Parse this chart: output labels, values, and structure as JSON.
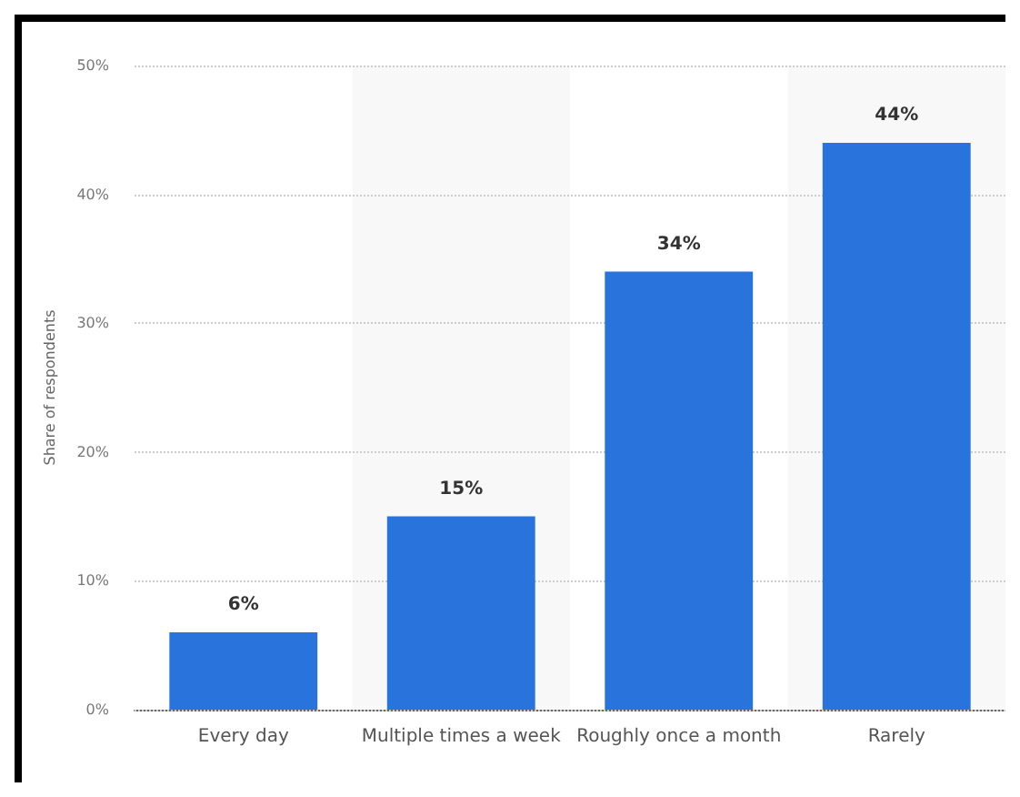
{
  "chart_data": {
    "type": "bar",
    "ylabel": "Share of respondents",
    "categories": [
      "Every day",
      "Multiple times a week",
      "Roughly once a month",
      "Rarely"
    ],
    "values": [
      6,
      15,
      34,
      44
    ],
    "color": "#2874dc",
    "value_labels": [
      "6%",
      "15%",
      "34%",
      "44%"
    ],
    "ylim": [
      0,
      50
    ],
    "yticks": [
      {
        "value": 0,
        "label": "0%"
      },
      {
        "value": 10,
        "label": "10%"
      },
      {
        "value": 20,
        "label": "20%"
      },
      {
        "value": 30,
        "label": "30%"
      },
      {
        "value": 40,
        "label": "40%"
      },
      {
        "value": 50,
        "label": "50%"
      }
    ],
    "grid": "y"
  }
}
